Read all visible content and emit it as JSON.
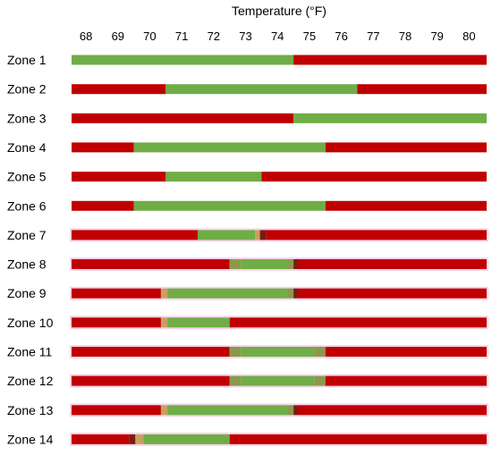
{
  "chart_data": {
    "type": "bar",
    "orientation": "horizontal",
    "title": "",
    "xlabel": "Temperature (°F)",
    "ylabel": "",
    "x_axis_position": "top",
    "xlim": [
      67.55,
      80.55
    ],
    "x_ticks": [
      "68",
      "69",
      "70",
      "71",
      "72",
      "73",
      "74",
      "75",
      "76",
      "77",
      "78",
      "79",
      "80"
    ],
    "grid": false,
    "legend": "none",
    "colors": {
      "out_of_range": "#c00000",
      "comfort": "#70ad47",
      "dark_red": "#7b1b12",
      "tan": "#c8a060",
      "olive": "#8a9a4a",
      "row_shadow": "#f6d4ea"
    },
    "categories": [
      "Zone 1",
      "Zone 2",
      "Zone 3",
      "Zone 4",
      "Zone 5",
      "Zone 6",
      "Zone 7",
      "Zone 8",
      "Zone 9",
      "Zone 10",
      "Zone 11",
      "Zone 12",
      "Zone 13",
      "Zone 14"
    ],
    "rows": [
      {
        "shadow": false,
        "segments": [
          {
            "from": 67.55,
            "to": 74.5,
            "color": "comfort"
          },
          {
            "from": 74.5,
            "to": 80.55,
            "color": "out_of_range"
          }
        ]
      },
      {
        "shadow": false,
        "segments": [
          {
            "from": 67.55,
            "to": 70.5,
            "color": "out_of_range"
          },
          {
            "from": 70.5,
            "to": 76.5,
            "color": "comfort"
          },
          {
            "from": 76.5,
            "to": 80.55,
            "color": "out_of_range"
          }
        ]
      },
      {
        "shadow": false,
        "segments": [
          {
            "from": 67.55,
            "to": 74.5,
            "color": "out_of_range"
          },
          {
            "from": 74.5,
            "to": 80.55,
            "color": "comfort"
          }
        ]
      },
      {
        "shadow": false,
        "segments": [
          {
            "from": 67.55,
            "to": 69.5,
            "color": "out_of_range"
          },
          {
            "from": 69.5,
            "to": 75.5,
            "color": "comfort"
          },
          {
            "from": 75.5,
            "to": 80.55,
            "color": "out_of_range"
          }
        ]
      },
      {
        "shadow": false,
        "segments": [
          {
            "from": 67.55,
            "to": 70.5,
            "color": "out_of_range"
          },
          {
            "from": 70.5,
            "to": 73.5,
            "color": "comfort"
          },
          {
            "from": 73.5,
            "to": 80.55,
            "color": "out_of_range"
          }
        ]
      },
      {
        "shadow": false,
        "segments": [
          {
            "from": 67.55,
            "to": 69.5,
            "color": "out_of_range"
          },
          {
            "from": 69.5,
            "to": 75.5,
            "color": "comfort"
          },
          {
            "from": 75.5,
            "to": 80.55,
            "color": "out_of_range"
          }
        ]
      },
      {
        "shadow": true,
        "segments": [
          {
            "from": 67.55,
            "to": 71.5,
            "color": "out_of_range"
          },
          {
            "from": 71.5,
            "to": 73.3,
            "color": "comfort"
          },
          {
            "from": 73.3,
            "to": 73.45,
            "color": "tan"
          },
          {
            "from": 73.45,
            "to": 73.65,
            "color": "dark_red"
          },
          {
            "from": 73.65,
            "to": 80.55,
            "color": "out_of_range"
          }
        ]
      },
      {
        "shadow": true,
        "segments": [
          {
            "from": 67.55,
            "to": 72.5,
            "color": "out_of_range"
          },
          {
            "from": 72.5,
            "to": 72.85,
            "color": "olive"
          },
          {
            "from": 72.85,
            "to": 74.3,
            "color": "comfort"
          },
          {
            "from": 74.3,
            "to": 74.5,
            "color": "olive"
          },
          {
            "from": 74.5,
            "to": 74.65,
            "color": "dark_red"
          },
          {
            "from": 74.65,
            "to": 80.55,
            "color": "out_of_range"
          }
        ]
      },
      {
        "shadow": true,
        "segments": [
          {
            "from": 67.55,
            "to": 70.35,
            "color": "out_of_range"
          },
          {
            "from": 70.35,
            "to": 70.55,
            "color": "tan"
          },
          {
            "from": 70.55,
            "to": 74.3,
            "color": "comfort"
          },
          {
            "from": 74.3,
            "to": 74.5,
            "color": "olive"
          },
          {
            "from": 74.5,
            "to": 74.65,
            "color": "dark_red"
          },
          {
            "from": 74.65,
            "to": 80.55,
            "color": "out_of_range"
          }
        ]
      },
      {
        "shadow": true,
        "segments": [
          {
            "from": 67.55,
            "to": 70.35,
            "color": "out_of_range"
          },
          {
            "from": 70.35,
            "to": 70.55,
            "color": "tan"
          },
          {
            "from": 70.55,
            "to": 72.5,
            "color": "comfort"
          },
          {
            "from": 72.5,
            "to": 80.55,
            "color": "out_of_range"
          }
        ]
      },
      {
        "shadow": true,
        "segments": [
          {
            "from": 67.55,
            "to": 72.5,
            "color": "out_of_range"
          },
          {
            "from": 72.5,
            "to": 72.85,
            "color": "olive"
          },
          {
            "from": 72.85,
            "to": 75.15,
            "color": "comfort"
          },
          {
            "from": 75.15,
            "to": 75.5,
            "color": "olive"
          },
          {
            "from": 75.5,
            "to": 80.55,
            "color": "out_of_range"
          }
        ]
      },
      {
        "shadow": true,
        "segments": [
          {
            "from": 67.55,
            "to": 72.5,
            "color": "out_of_range"
          },
          {
            "from": 72.5,
            "to": 72.85,
            "color": "olive"
          },
          {
            "from": 72.85,
            "to": 75.15,
            "color": "comfort"
          },
          {
            "from": 75.15,
            "to": 75.5,
            "color": "olive"
          },
          {
            "from": 75.5,
            "to": 80.55,
            "color": "out_of_range"
          }
        ]
      },
      {
        "shadow": true,
        "segments": [
          {
            "from": 67.55,
            "to": 70.35,
            "color": "out_of_range"
          },
          {
            "from": 70.35,
            "to": 70.55,
            "color": "tan"
          },
          {
            "from": 70.55,
            "to": 74.3,
            "color": "comfort"
          },
          {
            "from": 74.3,
            "to": 74.5,
            "color": "olive"
          },
          {
            "from": 74.5,
            "to": 74.65,
            "color": "dark_red"
          },
          {
            "from": 74.65,
            "to": 80.55,
            "color": "out_of_range"
          }
        ]
      },
      {
        "shadow": true,
        "segments": [
          {
            "from": 67.55,
            "to": 69.35,
            "color": "out_of_range"
          },
          {
            "from": 69.35,
            "to": 69.55,
            "color": "dark_red"
          },
          {
            "from": 69.55,
            "to": 69.8,
            "color": "tan"
          },
          {
            "from": 69.8,
            "to": 72.5,
            "color": "comfort"
          },
          {
            "from": 72.5,
            "to": 80.55,
            "color": "out_of_range"
          }
        ]
      }
    ]
  }
}
